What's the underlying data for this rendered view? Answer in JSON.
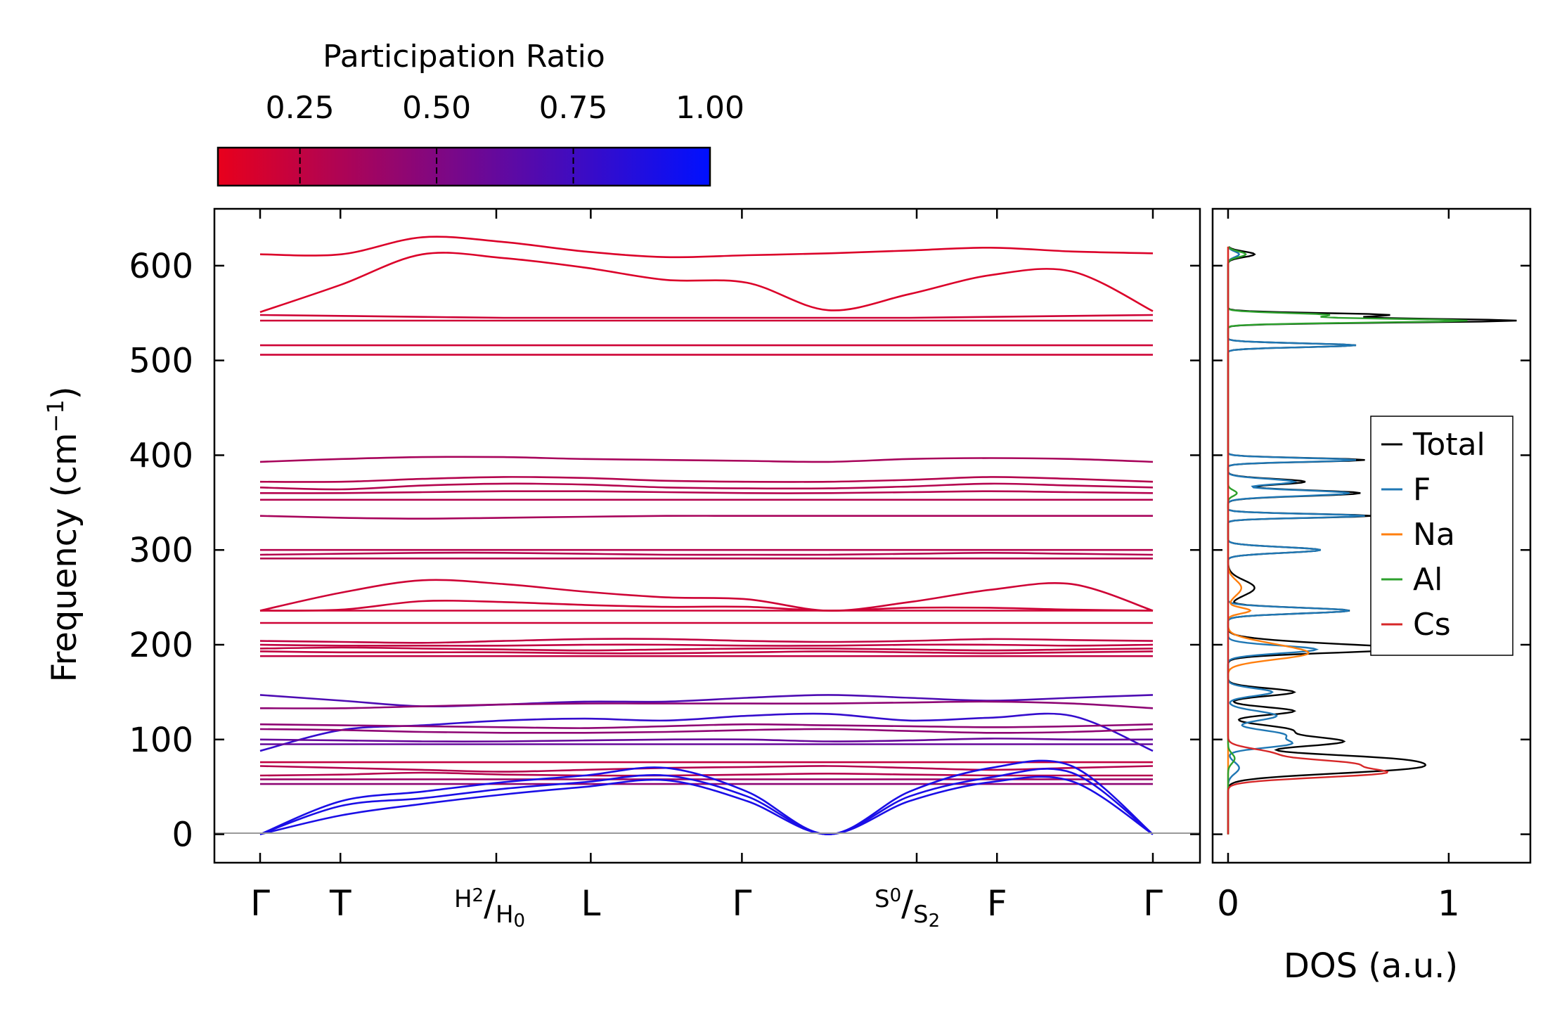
{
  "chart_data": [
    {
      "type": "line",
      "subtype": "phonon-band-structure",
      "ylabel": "Frequency (cm",
      "ylabel_sup": "−1",
      "ylabel_close": ")",
      "ylim": [
        -30,
        660
      ],
      "yticks": [
        "0",
        "100",
        "200",
        "300",
        "400",
        "500",
        "600"
      ],
      "ytick_values": [
        0,
        100,
        200,
        300,
        400,
        500,
        600
      ],
      "kpath": [
        {
          "label": "Γ",
          "pos": 0.0
        },
        {
          "label": "T",
          "pos": 0.17
        },
        {
          "label": "H",
          "sub": "2",
          "label2": "H",
          "sub2": "0",
          "pos": 0.5,
          "split": true
        },
        {
          "label": "L",
          "pos": 0.7
        },
        {
          "label": "Γ",
          "pos": 1.02
        },
        {
          "label": "S",
          "sub": "0",
          "label2": "S",
          "sub2": "2",
          "pos": 1.39,
          "split": true
        },
        {
          "label": "F",
          "pos": 1.56
        },
        {
          "label": "Γ",
          "pos": 1.89
        }
      ],
      "colorbar": {
        "title": "Participation Ratio",
        "tick_labels": [
          "0.25",
          "0.50",
          "0.75",
          "1.00"
        ],
        "tick_values": [
          0.25,
          0.5,
          0.75,
          1.0
        ],
        "range": [
          0.1,
          1.0
        ],
        "color_low": "#e8001c",
        "color_high": "#0010ff"
      },
      "bands": [
        {
          "pr": 0.15,
          "y": [
            612,
            612,
            630,
            625,
            615,
            609,
            611,
            613,
            616,
            619,
            615,
            613
          ]
        },
        {
          "pr": 0.15,
          "y": [
            551,
            580,
            612,
            608,
            598,
            585,
            582,
            553,
            570,
            590,
            594,
            552
          ]
        },
        {
          "pr": 0.2,
          "y": [
            548,
            547,
            546,
            545,
            545,
            545,
            545,
            545,
            545,
            546,
            547,
            548
          ]
        },
        {
          "pr": 0.2,
          "y": [
            542,
            542,
            542,
            542,
            542,
            542,
            542,
            542,
            542,
            542,
            542,
            542
          ]
        },
        {
          "pr": 0.2,
          "y": [
            516,
            516,
            516,
            516,
            516,
            516,
            516,
            516,
            516,
            516,
            516,
            516
          ]
        },
        {
          "pr": 0.2,
          "y": [
            506,
            506,
            506,
            506,
            506,
            506,
            506,
            506,
            506,
            506,
            506,
            506
          ]
        },
        {
          "pr": 0.35,
          "y": [
            393,
            396,
            398,
            398,
            396,
            395,
            394,
            393,
            396,
            397,
            396,
            393
          ]
        },
        {
          "pr": 0.3,
          "y": [
            372,
            372,
            375,
            377,
            376,
            373,
            372,
            372,
            374,
            377,
            375,
            372
          ]
        },
        {
          "pr": 0.3,
          "y": [
            366,
            364,
            368,
            370,
            369,
            366,
            365,
            365,
            367,
            370,
            368,
            366
          ]
        },
        {
          "pr": 0.3,
          "y": [
            360,
            360,
            361,
            362,
            362,
            361,
            360,
            360,
            361,
            362,
            361,
            360
          ]
        },
        {
          "pr": 0.3,
          "y": [
            353,
            353,
            353,
            353,
            353,
            353,
            353,
            353,
            353,
            353,
            353,
            353
          ]
        },
        {
          "pr": 0.35,
          "y": [
            336,
            334,
            333,
            334,
            335,
            336,
            336,
            336,
            336,
            336,
            336,
            336
          ]
        },
        {
          "pr": 0.3,
          "y": [
            300,
            300,
            300,
            300,
            300,
            300,
            300,
            300,
            300,
            300,
            300,
            300
          ]
        },
        {
          "pr": 0.3,
          "y": [
            295,
            296,
            297,
            297,
            296,
            295,
            295,
            295,
            296,
            297,
            296,
            295
          ]
        },
        {
          "pr": 0.3,
          "y": [
            291,
            291,
            291,
            291,
            291,
            291,
            291,
            291,
            291,
            291,
            291,
            291
          ]
        },
        {
          "pr": 0.2,
          "y": [
            236,
            255,
            268,
            264,
            256,
            250,
            248,
            236,
            245,
            258,
            264,
            236
          ]
        },
        {
          "pr": 0.2,
          "y": [
            236,
            237,
            246,
            245,
            242,
            240,
            240,
            236,
            239,
            239,
            237,
            236
          ]
        },
        {
          "pr": 0.2,
          "y": [
            236,
            236,
            236,
            236,
            236,
            236,
            236,
            236,
            236,
            236,
            236,
            236
          ]
        },
        {
          "pr": 0.2,
          "y": [
            223,
            223,
            223,
            223,
            223,
            223,
            223,
            223,
            223,
            223,
            223,
            223
          ]
        },
        {
          "pr": 0.25,
          "y": [
            204,
            203,
            202,
            204,
            206,
            206,
            204,
            203,
            204,
            206,
            205,
            204
          ]
        },
        {
          "pr": 0.25,
          "y": [
            200,
            199,
            199,
            199,
            200,
            200,
            199,
            199,
            200,
            200,
            199,
            200
          ]
        },
        {
          "pr": 0.25,
          "y": [
            196,
            197,
            196,
            195,
            194,
            195,
            196,
            196,
            195,
            194,
            195,
            196
          ]
        },
        {
          "pr": 0.25,
          "y": [
            193,
            192,
            192,
            192,
            191,
            191,
            192,
            193,
            192,
            191,
            192,
            193
          ]
        },
        {
          "pr": 0.25,
          "y": [
            188,
            188,
            188,
            188,
            188,
            188,
            188,
            188,
            188,
            188,
            188,
            188
          ]
        },
        {
          "pr": 0.7,
          "y": [
            147,
            141,
            135,
            137,
            140,
            140,
            144,
            147,
            144,
            141,
            144,
            147
          ]
        },
        {
          "pr": 0.45,
          "y": [
            133,
            133,
            135,
            137,
            138,
            138,
            138,
            138,
            139,
            140,
            138,
            133
          ]
        },
        {
          "pr": 0.8,
          "y": [
            88,
            110,
            115,
            120,
            122,
            120,
            125,
            127,
            120,
            123,
            125,
            88
          ]
        },
        {
          "pr": 0.45,
          "y": [
            116,
            115,
            114,
            113,
            112,
            114,
            116,
            115,
            114,
            113,
            114,
            116
          ]
        },
        {
          "pr": 0.45,
          "y": [
            111,
            110,
            108,
            107,
            107,
            108,
            110,
            111,
            109,
            107,
            108,
            111
          ]
        },
        {
          "pr": 0.6,
          "y": [
            100,
            99,
            98,
            98,
            99,
            100,
            100,
            98,
            99,
            101,
            100,
            100
          ]
        },
        {
          "pr": 0.6,
          "y": [
            95,
            95,
            95,
            95,
            95,
            95,
            95,
            95,
            95,
            95,
            95,
            95
          ]
        },
        {
          "pr": 0.25,
          "y": [
            76,
            76,
            76,
            76,
            76,
            76,
            76,
            76,
            76,
            76,
            76,
            76
          ]
        },
        {
          "pr": 0.3,
          "y": [
            72,
            70,
            68,
            66,
            68,
            70,
            71,
            72,
            70,
            68,
            70,
            72
          ]
        },
        {
          "pr": 0.3,
          "y": [
            62,
            63,
            65,
            63,
            62,
            62,
            63,
            64,
            63,
            62,
            62,
            62
          ]
        },
        {
          "pr": 0.4,
          "y": [
            58,
            58,
            58,
            58,
            58,
            58,
            58,
            58,
            58,
            58,
            58,
            58
          ]
        },
        {
          "pr": 0.45,
          "y": [
            53,
            53,
            53,
            53,
            53,
            53,
            53,
            53,
            53,
            53,
            53,
            53
          ]
        },
        {
          "pr": 0.9,
          "y": [
            0,
            35,
            45,
            55,
            62,
            70,
            45,
            0,
            45,
            70,
            72,
            0
          ]
        },
        {
          "pr": 0.9,
          "y": [
            0,
            30,
            38,
            48,
            55,
            62,
            40,
            0,
            40,
            60,
            65,
            0
          ]
        },
        {
          "pr": 0.9,
          "y": [
            0,
            20,
            32,
            42,
            50,
            57,
            35,
            0,
            35,
            55,
            56,
            0
          ]
        }
      ]
    },
    {
      "type": "line",
      "subtype": "density-of-states",
      "xlabel": "DOS (a.u.)",
      "xlim": [
        -0.07,
        1.37
      ],
      "xticks": [
        "0",
        "1"
      ],
      "xtick_values": [
        0,
        1
      ],
      "legend_position": "center-right",
      "series": [
        {
          "name": "Total",
          "color": "#000000",
          "peaks": [
            [
              70,
              0.78,
              6
            ],
            [
              80,
              0.55,
              5
            ],
            [
              95,
              0.3,
              4
            ],
            [
              100,
              0.32,
              4
            ],
            [
              110,
              0.28,
              5
            ],
            [
              130,
              0.3,
              4
            ],
            [
              150,
              0.3,
              4
            ],
            [
              195,
              0.6,
              4
            ],
            [
              200,
              0.3,
              5
            ],
            [
              236,
              0.55,
              3
            ],
            [
              260,
              0.12,
              8
            ],
            [
              300,
              0.42,
              3
            ],
            [
              336,
              0.65,
              2
            ],
            [
              360,
              0.6,
              3
            ],
            [
              372,
              0.35,
              3
            ],
            [
              395,
              0.62,
              2
            ],
            [
              516,
              0.58,
              2
            ],
            [
              542,
              1.3,
              2
            ],
            [
              548,
              0.72,
              2
            ],
            [
              612,
              0.12,
              3
            ]
          ]
        },
        {
          "name": "F",
          "color": "#1f77b4",
          "peaks": [
            [
              70,
              0.05,
              6
            ],
            [
              95,
              0.25,
              4
            ],
            [
              105,
              0.25,
              5
            ],
            [
              125,
              0.22,
              5
            ],
            [
              150,
              0.2,
              4
            ],
            [
              195,
              0.4,
              4
            ],
            [
              236,
              0.55,
              3
            ],
            [
              300,
              0.42,
              3
            ],
            [
              336,
              0.62,
              2
            ],
            [
              360,
              0.55,
              3
            ],
            [
              372,
              0.3,
              3
            ],
            [
              395,
              0.58,
              2
            ],
            [
              516,
              0.58,
              2
            ],
            [
              612,
              0.05,
              3
            ]
          ]
        },
        {
          "name": "Na",
          "color": "#ff7f0e",
          "peaks": [
            [
              190,
              0.32,
              6
            ],
            [
              200,
              0.15,
              6
            ],
            [
              236,
              0.1,
              3
            ],
            [
              260,
              0.06,
              8
            ]
          ]
        },
        {
          "name": "Al",
          "color": "#2ca02c",
          "peaks": [
            [
              80,
              0.03,
              5
            ],
            [
              360,
              0.04,
              3
            ],
            [
              542,
              1.08,
              2
            ],
            [
              548,
              0.45,
              2
            ],
            [
              612,
              0.08,
              3
            ]
          ]
        },
        {
          "name": "Cs",
          "color": "#d62728",
          "peaks": [
            [
              65,
              0.7,
              5
            ],
            [
              75,
              0.45,
              4
            ],
            [
              85,
              0.2,
              5
            ]
          ]
        }
      ]
    }
  ]
}
